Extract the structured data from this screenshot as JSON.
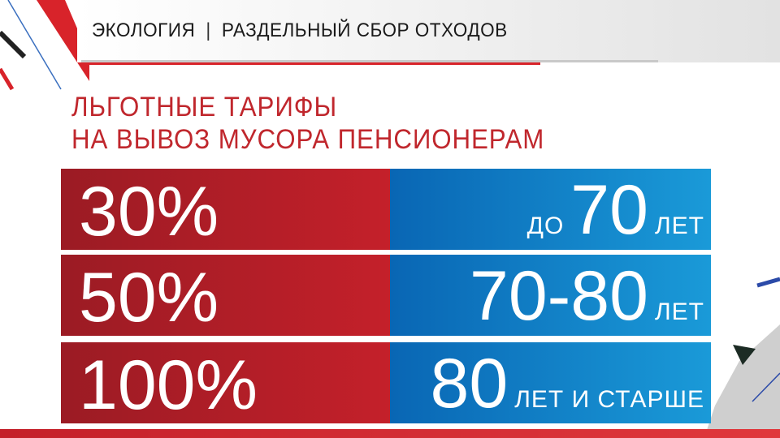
{
  "header": {
    "section": "ЭКОЛОГИЯ",
    "separator": "|",
    "topic": "РАЗДЕЛЬНЫЙ СБОР ОТХОДОВ"
  },
  "title": {
    "line1": "ЛЬГОТНЫЕ ТАРИФЫ",
    "line2": "НА ВЫВОЗ МУСОРА ПЕНСИОНЕРАМ"
  },
  "tariffs": [
    {
      "discount": "30%",
      "prefix": "ДО",
      "age": "70",
      "suffix": "ЛЕТ"
    },
    {
      "discount": "50%",
      "prefix": "",
      "age": "70-80",
      "suffix": "ЛЕТ"
    },
    {
      "discount": "100%",
      "prefix": "",
      "age": "80",
      "suffix": "ЛЕТ И СТАРШЕ"
    }
  ],
  "colors": {
    "red": "#c4202a",
    "dark_red": "#9b1b24",
    "blue": "#0966b4",
    "light_blue": "#1a9ad8",
    "title_red": "#c0272d"
  }
}
